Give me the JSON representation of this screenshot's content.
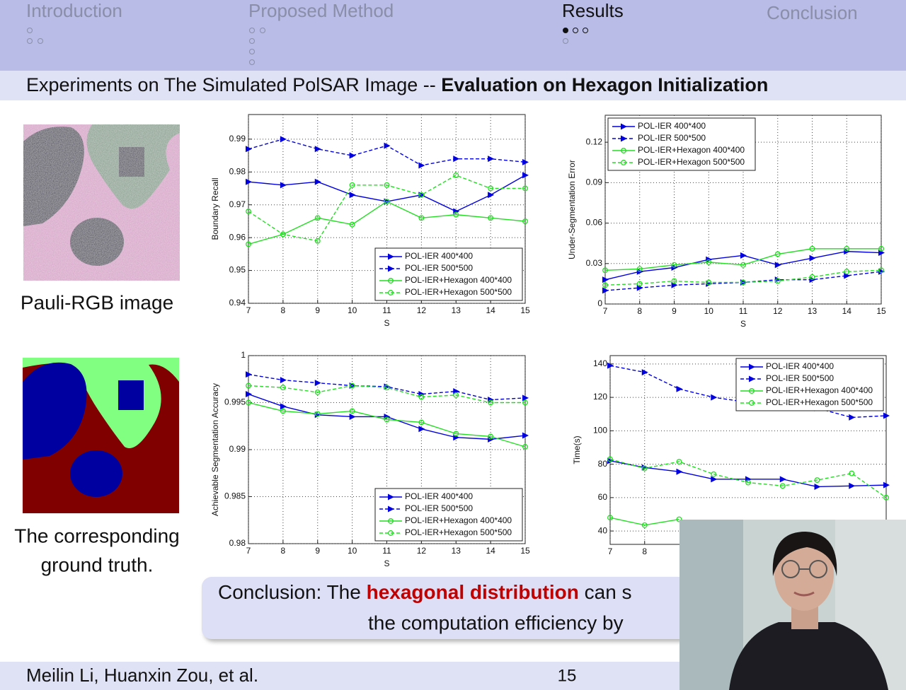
{
  "header": {
    "nav": [
      "Introduction",
      "Proposed Method",
      "Results",
      "Conclusion"
    ],
    "active": 2
  },
  "title": {
    "plain": "Experiments on The Simulated PolSAR Image -- ",
    "bold": "Evaluation on Hexagon Initialization"
  },
  "captions": {
    "pauli": "Pauli-RGB image",
    "ground_truth": [
      "The corresponding",
      "ground truth."
    ]
  },
  "conclusion": {
    "line1": [
      "Conclusion: The ",
      "hexagonal distribution",
      " can s"
    ],
    "line2": "the computation efficiency by"
  },
  "footer": {
    "authors": "Meilin Li, Huanxin Zou, et al.",
    "page": "15"
  },
  "chart_data": [
    {
      "type": "line",
      "ylabel": "Boundary Recall",
      "xlabel": "S",
      "grid": true,
      "legend": "lower right",
      "x": [
        7,
        8,
        9,
        10,
        11,
        12,
        13,
        14,
        15
      ],
      "xlim": [
        7,
        15
      ],
      "xticks": [
        7,
        8,
        9,
        10,
        11,
        12,
        13,
        14,
        15
      ],
      "ylim": [
        0.94,
        0.9975
      ],
      "yticks": [
        0.94,
        0.95,
        0.96,
        0.97,
        0.98,
        0.99
      ],
      "series": [
        {
          "name": "POL-IER 400*400",
          "color": "#0000e0",
          "marker": "triangle",
          "dashed": false,
          "values": [
            0.977,
            0.976,
            0.977,
            0.973,
            0.971,
            0.973,
            0.968,
            0.973,
            0.979
          ]
        },
        {
          "name": "POL-IER 500*500",
          "color": "#0000e0",
          "marker": "triangle",
          "dashed": true,
          "values": [
            0.987,
            0.99,
            0.987,
            0.985,
            0.988,
            0.982,
            0.984,
            0.984,
            0.983
          ]
        },
        {
          "name": "POL-IER+Hexagon 400*400",
          "color": "#22dd22",
          "marker": "circle",
          "dashed": false,
          "values": [
            0.958,
            0.961,
            0.966,
            0.964,
            0.971,
            0.966,
            0.967,
            0.966,
            0.965
          ]
        },
        {
          "name": "POL-IER+Hexagon 500*500",
          "color": "#22dd22",
          "marker": "circle",
          "dashed": true,
          "values": [
            0.968,
            0.961,
            0.959,
            0.976,
            0.976,
            0.973,
            0.979,
            0.975,
            0.975
          ]
        }
      ]
    },
    {
      "type": "line",
      "ylabel": "Under-Segmentation Error",
      "xlabel": "S",
      "grid": true,
      "legend": "upper left",
      "x": [
        7,
        8,
        9,
        10,
        11,
        12,
        13,
        14,
        15
      ],
      "xlim": [
        7,
        15
      ],
      "xticks": [
        7,
        8,
        9,
        10,
        11,
        12,
        13,
        14,
        15
      ],
      "ylim": [
        0,
        0.14
      ],
      "yticks": [
        0,
        0.03,
        0.06,
        0.09,
        0.12
      ],
      "series": [
        {
          "name": "POL-IER 400*400",
          "color": "#0000e0",
          "marker": "triangle",
          "dashed": false,
          "values": [
            0.018,
            0.024,
            0.027,
            0.033,
            0.036,
            0.029,
            0.034,
            0.039,
            0.038
          ]
        },
        {
          "name": "POL-IER 500*500",
          "color": "#0000e0",
          "marker": "triangle",
          "dashed": true,
          "values": [
            0.01,
            0.012,
            0.014,
            0.015,
            0.016,
            0.018,
            0.018,
            0.021,
            0.024
          ]
        },
        {
          "name": "POL-IER+Hexagon 400*400",
          "color": "#22dd22",
          "marker": "circle",
          "dashed": false,
          "values": [
            0.025,
            0.026,
            0.029,
            0.031,
            0.029,
            0.037,
            0.041,
            0.041,
            0.041
          ]
        },
        {
          "name": "POL-IER+Hexagon 500*500",
          "color": "#22dd22",
          "marker": "circle",
          "dashed": true,
          "values": [
            0.014,
            0.015,
            0.017,
            0.016,
            0.016,
            0.017,
            0.02,
            0.024,
            0.025
          ]
        }
      ]
    },
    {
      "type": "line",
      "ylabel": "Achievable Segmentation Accuracy",
      "xlabel": "S",
      "grid": true,
      "legend": "lower right",
      "x": [
        7,
        8,
        9,
        10,
        11,
        12,
        13,
        14,
        15
      ],
      "xlim": [
        7,
        15
      ],
      "xticks": [
        7,
        8,
        9,
        10,
        11,
        12,
        13,
        14,
        15
      ],
      "ylim": [
        0.98,
        1
      ],
      "yticks": [
        0.98,
        0.985,
        0.99,
        0.995,
        1
      ],
      "series": [
        {
          "name": "POL-IER 400*400",
          "color": "#0000e0",
          "marker": "triangle",
          "dashed": false,
          "values": [
            0.9959,
            0.9946,
            0.9937,
            0.9935,
            0.9935,
            0.9922,
            0.9913,
            0.9911,
            0.9915
          ]
        },
        {
          "name": "POL-IER 500*500",
          "color": "#0000e0",
          "marker": "triangle",
          "dashed": true,
          "values": [
            0.998,
            0.9974,
            0.9971,
            0.9968,
            0.9967,
            0.9959,
            0.9962,
            0.9953,
            0.9955
          ]
        },
        {
          "name": "POL-IER+Hexagon 400*400",
          "color": "#22dd22",
          "marker": "circle",
          "dashed": false,
          "values": [
            0.995,
            0.9941,
            0.9938,
            0.9941,
            0.9932,
            0.9929,
            0.9917,
            0.9914,
            0.9903
          ]
        },
        {
          "name": "POL-IER+Hexagon 500*500",
          "color": "#22dd22",
          "marker": "circle",
          "dashed": true,
          "values": [
            0.9968,
            0.9966,
            0.9961,
            0.9968,
            0.9966,
            0.9956,
            0.9958,
            0.995,
            0.995
          ]
        }
      ]
    },
    {
      "type": "line",
      "ylabel": "Time(s)",
      "grid": true,
      "legend": "upper right",
      "x": [
        7,
        8,
        9,
        10,
        11,
        12,
        13,
        14,
        15
      ],
      "xlim": [
        7,
        15
      ],
      "xticks": [
        7,
        8
      ],
      "ylim": [
        32,
        145
      ],
      "yticks": [
        40,
        60,
        80,
        100,
        120,
        140
      ],
      "series": [
        {
          "name": "POL-IER 400*400",
          "color": "#0000e0",
          "marker": "triangle",
          "dashed": false,
          "values": [
            82,
            78,
            75.5,
            71,
            71,
            71,
            66.5,
            67,
            67.5
          ]
        },
        {
          "name": "POL-IER 500*500",
          "color": "#0000e0",
          "marker": "triangle",
          "dashed": true,
          "values": [
            139,
            135,
            125,
            120,
            117,
            116,
            113.5,
            108,
            109
          ]
        },
        {
          "name": "POL-IER+Hexagon 400*400",
          "color": "#22dd22",
          "marker": "circle",
          "dashed": false,
          "values": [
            48,
            43.5,
            47,
            null,
            null,
            null,
            null,
            null,
            null
          ]
        },
        {
          "name": "POL-IER+Hexagon 500*500",
          "color": "#22dd22",
          "marker": "circle",
          "dashed": true,
          "values": [
            83,
            77.5,
            81.5,
            74,
            69,
            67,
            70.5,
            74.5,
            60
          ]
        }
      ]
    }
  ]
}
